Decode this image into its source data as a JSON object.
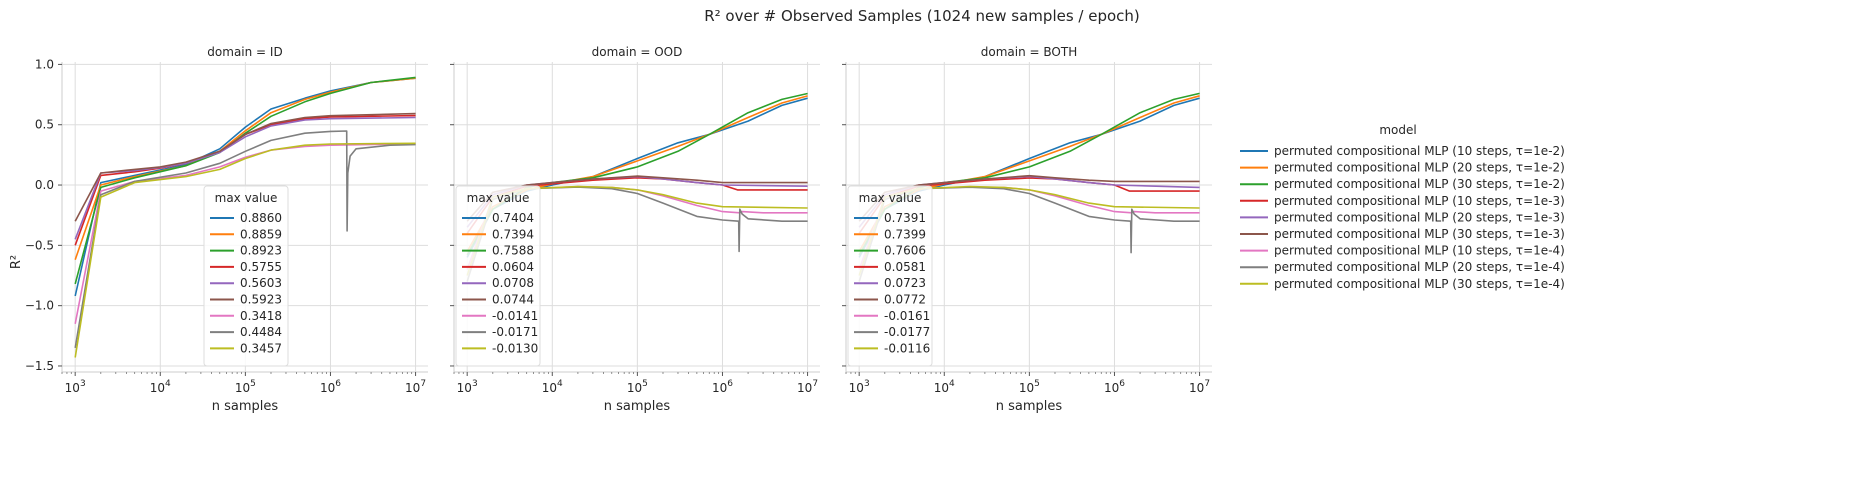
{
  "chart_data": {
    "type": "line",
    "title": "R² over # Observed Samples (1024 new samples / epoch)",
    "xlabel": "n samples",
    "ylabel": "R²",
    "xscale": "log",
    "xlim": [
      700,
      14000000
    ],
    "ylim": [
      -1.55,
      1.02
    ],
    "x_ticks": [
      {
        "value": 1000,
        "base": "10",
        "exp": "3"
      },
      {
        "value": 10000,
        "base": "10",
        "exp": "4"
      },
      {
        "value": 100000,
        "base": "10",
        "exp": "5"
      },
      {
        "value": 1000000,
        "base": "10",
        "exp": "6"
      },
      {
        "value": 10000000,
        "base": "10",
        "exp": "7"
      }
    ],
    "y_ticks": [
      {
        "value": 1.0,
        "label": "1.0"
      },
      {
        "value": 0.5,
        "label": "0.5"
      },
      {
        "value": 0.0,
        "label": "0.0"
      },
      {
        "value": -0.5,
        "label": "−0.5"
      },
      {
        "value": -1.0,
        "label": "−1.0"
      },
      {
        "value": -1.5,
        "label": "−1.5"
      }
    ],
    "grid": true,
    "colors": [
      "#1f77b4",
      "#ff7f0e",
      "#2ca02c",
      "#d62728",
      "#9467bd",
      "#8c564b",
      "#e377c2",
      "#7f7f7f",
      "#bcbd22"
    ],
    "legend": {
      "title": "model",
      "placement": "right",
      "entries": [
        "permuted compositional MLP (10 steps, τ=1e-2)",
        "permuted compositional MLP (20 steps, τ=1e-2)",
        "permuted compositional MLP (30 steps, τ=1e-2)",
        "permuted compositional MLP (10 steps, τ=1e-3)",
        "permuted compositional MLP (20 steps, τ=1e-3)",
        "permuted compositional MLP (30 steps, τ=1e-3)",
        "permuted compositional MLP (10 steps, τ=1e-4)",
        "permuted compositional MLP (20 steps, τ=1e-4)",
        "permuted compositional MLP (30 steps, τ=1e-4)"
      ]
    },
    "panels": [
      {
        "title": "domain = ID",
        "legend_title": "max value",
        "max_values": [
          "0.8860",
          "0.8859",
          "0.8923",
          "0.5755",
          "0.5603",
          "0.5923",
          "0.3418",
          "0.4484",
          "0.3457"
        ],
        "series": [
          {
            "x": [
              1000,
              2000,
              5000,
              20000,
              50000,
              100000,
              200000,
              500000,
              1000000,
              3000000,
              10000000
            ],
            "y": [
              -0.92,
              0.02,
              0.08,
              0.17,
              0.3,
              0.48,
              0.63,
              0.72,
              0.78,
              0.85,
              0.886
            ]
          },
          {
            "x": [
              1000,
              2000,
              5000,
              20000,
              50000,
              100000,
              200000,
              500000,
              1000000,
              3000000,
              10000000
            ],
            "y": [
              -0.62,
              0.0,
              0.07,
              0.16,
              0.28,
              0.45,
              0.6,
              0.71,
              0.77,
              0.85,
              0.886
            ]
          },
          {
            "x": [
              1000,
              2000,
              5000,
              20000,
              50000,
              100000,
              200000,
              500000,
              1000000,
              3000000,
              10000000
            ],
            "y": [
              -0.82,
              -0.02,
              0.06,
              0.16,
              0.27,
              0.43,
              0.57,
              0.69,
              0.76,
              0.85,
              0.892
            ]
          },
          {
            "x": [
              1000,
              2000,
              5000,
              10000,
              20000,
              50000,
              100000,
              200000,
              500000,
              1000000,
              10000000
            ],
            "y": [
              -0.5,
              0.08,
              0.11,
              0.14,
              0.18,
              0.28,
              0.42,
              0.5,
              0.55,
              0.565,
              0.576
            ]
          },
          {
            "x": [
              1000,
              2000,
              5000,
              10000,
              20000,
              50000,
              100000,
              200000,
              500000,
              1000000,
              10000000
            ],
            "y": [
              -0.45,
              0.1,
              0.12,
              0.145,
              0.18,
              0.27,
              0.4,
              0.49,
              0.54,
              0.55,
              0.56
            ]
          },
          {
            "x": [
              1000,
              2000,
              5000,
              10000,
              20000,
              50000,
              100000,
              200000,
              500000,
              1000000,
              10000000
            ],
            "y": [
              -0.3,
              0.1,
              0.13,
              0.15,
              0.19,
              0.28,
              0.42,
              0.51,
              0.56,
              0.575,
              0.592
            ]
          },
          {
            "x": [
              1000,
              2000,
              5000,
              20000,
              50000,
              100000,
              200000,
              500000,
              1000000,
              10000000
            ],
            "y": [
              -1.15,
              -0.05,
              0.03,
              0.08,
              0.15,
              0.23,
              0.29,
              0.32,
              0.33,
              0.342
            ]
          },
          {
            "x": [
              1000,
              2000,
              5000,
              20000,
              50000,
              100000,
              200000,
              500000,
              1000000,
              1550000,
              1570000,
              1600000,
              1700000,
              2000000,
              5000000,
              10000000
            ],
            "y": [
              -1.35,
              -0.08,
              0.03,
              0.1,
              0.18,
              0.28,
              0.37,
              0.43,
              0.445,
              0.448,
              -0.38,
              0.1,
              0.24,
              0.3,
              0.33,
              0.335
            ]
          },
          {
            "x": [
              1000,
              2000,
              5000,
              20000,
              50000,
              100000,
              200000,
              500000,
              1000000,
              10000000
            ],
            "y": [
              -1.43,
              -0.1,
              0.02,
              0.07,
              0.13,
              0.22,
              0.29,
              0.33,
              0.34,
              0.346
            ]
          }
        ]
      },
      {
        "title": "domain = OOD",
        "legend_title": "max value",
        "max_values": [
          "0.7404",
          "0.7394",
          "0.7588",
          "0.0604",
          "0.0708",
          "0.0744",
          "-0.0141",
          "-0.0171",
          "-0.0130"
        ],
        "series": [
          {
            "x": [
              1000,
              2000,
              5000,
              10000,
              30000,
              100000,
              300000,
              700000,
              2000000,
              5000000,
              10000000
            ],
            "y": [
              -0.6,
              -0.2,
              -0.05,
              0.0,
              0.07,
              0.22,
              0.35,
              0.42,
              0.53,
              0.66,
              0.72
            ]
          },
          {
            "x": [
              1000,
              2000,
              5000,
              10000,
              30000,
              100000,
              300000,
              700000,
              2000000,
              5000000,
              10000000
            ],
            "y": [
              -0.55,
              -0.18,
              -0.04,
              0.01,
              0.07,
              0.2,
              0.32,
              0.42,
              0.56,
              0.68,
              0.739
            ]
          },
          {
            "x": [
              1000,
              2000,
              5000,
              10000,
              30000,
              100000,
              300000,
              700000,
              2000000,
              5000000,
              10000000
            ],
            "y": [
              -0.58,
              -0.2,
              -0.02,
              0.02,
              0.06,
              0.15,
              0.28,
              0.42,
              0.6,
              0.71,
              0.759
            ]
          },
          {
            "x": [
              1000,
              2000,
              5000,
              10000,
              30000,
              100000,
              200000,
              500000,
              1000000,
              1500000,
              10000000
            ],
            "y": [
              -0.4,
              -0.1,
              -0.01,
              0.01,
              0.04,
              0.06,
              0.05,
              0.02,
              0.0,
              -0.04,
              -0.04
            ]
          },
          {
            "x": [
              1000,
              2000,
              5000,
              10000,
              30000,
              100000,
              200000,
              500000,
              1000000,
              10000000
            ],
            "y": [
              -0.35,
              -0.08,
              0.0,
              0.02,
              0.05,
              0.07,
              0.05,
              0.02,
              0.0,
              -0.01
            ]
          },
          {
            "x": [
              1000,
              2000,
              5000,
              10000,
              30000,
              100000,
              200000,
              500000,
              1000000,
              10000000
            ],
            "y": [
              -0.3,
              -0.06,
              0.0,
              0.02,
              0.05,
              0.074,
              0.06,
              0.04,
              0.02,
              0.02
            ]
          },
          {
            "x": [
              1000,
              2000,
              5000,
              20000,
              50000,
              100000,
              200000,
              500000,
              1000000,
              1600000,
              1700000,
              3000000,
              10000000
            ],
            "y": [
              -0.7,
              -0.1,
              -0.03,
              -0.014,
              -0.02,
              -0.04,
              -0.09,
              -0.17,
              -0.22,
              -0.23,
              -0.22,
              -0.23,
              -0.23
            ]
          },
          {
            "x": [
              1000,
              2000,
              5000,
              20000,
              50000,
              100000,
              200000,
              500000,
              1000000,
              1550000,
              1570000,
              1600000,
              1700000,
              2000000,
              5000000,
              10000000
            ],
            "y": [
              -0.8,
              -0.12,
              -0.03,
              -0.017,
              -0.03,
              -0.07,
              -0.15,
              -0.26,
              -0.29,
              -0.3,
              -0.55,
              -0.2,
              -0.24,
              -0.28,
              -0.3,
              -0.3
            ]
          },
          {
            "x": [
              1000,
              2000,
              5000,
              20000,
              50000,
              100000,
              200000,
              500000,
              1000000,
              10000000
            ],
            "y": [
              -0.75,
              -0.1,
              -0.03,
              -0.013,
              -0.02,
              -0.04,
              -0.08,
              -0.15,
              -0.18,
              -0.19
            ]
          }
        ]
      },
      {
        "title": "domain = BOTH",
        "legend_title": "max value",
        "max_values": [
          "0.7391",
          "0.7399",
          "0.7606",
          "0.0581",
          "0.0723",
          "0.0772",
          "-0.0161",
          "-0.0177",
          "-0.0116"
        ],
        "series": [
          {
            "x": [
              1000,
              2000,
              5000,
              10000,
              30000,
              100000,
              300000,
              700000,
              2000000,
              5000000,
              10000000
            ],
            "y": [
              -0.6,
              -0.2,
              -0.05,
              0.0,
              0.07,
              0.22,
              0.35,
              0.42,
              0.53,
              0.66,
              0.72
            ]
          },
          {
            "x": [
              1000,
              2000,
              5000,
              10000,
              30000,
              100000,
              300000,
              700000,
              2000000,
              5000000,
              10000000
            ],
            "y": [
              -0.55,
              -0.18,
              -0.04,
              0.01,
              0.07,
              0.2,
              0.32,
              0.42,
              0.56,
              0.68,
              0.74
            ]
          },
          {
            "x": [
              1000,
              2000,
              5000,
              10000,
              30000,
              100000,
              300000,
              700000,
              2000000,
              5000000,
              10000000
            ],
            "y": [
              -0.58,
              -0.2,
              -0.02,
              0.02,
              0.06,
              0.15,
              0.28,
              0.42,
              0.6,
              0.71,
              0.76
            ]
          },
          {
            "x": [
              1000,
              2000,
              5000,
              10000,
              30000,
              100000,
              200000,
              500000,
              1000000,
              1500000,
              10000000
            ],
            "y": [
              -0.4,
              -0.1,
              -0.01,
              0.01,
              0.04,
              0.058,
              0.05,
              0.02,
              0.0,
              -0.05,
              -0.05
            ]
          },
          {
            "x": [
              1000,
              2000,
              5000,
              10000,
              30000,
              100000,
              200000,
              500000,
              1000000,
              10000000
            ],
            "y": [
              -0.35,
              -0.08,
              0.0,
              0.02,
              0.05,
              0.072,
              0.05,
              0.02,
              0.0,
              -0.02
            ]
          },
          {
            "x": [
              1000,
              2000,
              5000,
              10000,
              30000,
              100000,
              200000,
              500000,
              1000000,
              10000000
            ],
            "y": [
              -0.3,
              -0.06,
              0.0,
              0.02,
              0.05,
              0.077,
              0.06,
              0.04,
              0.03,
              0.03
            ]
          },
          {
            "x": [
              1000,
              2000,
              5000,
              20000,
              50000,
              100000,
              200000,
              500000,
              1000000,
              1600000,
              1700000,
              3000000,
              10000000
            ],
            "y": [
              -0.7,
              -0.1,
              -0.03,
              -0.016,
              -0.02,
              -0.04,
              -0.09,
              -0.17,
              -0.22,
              -0.23,
              -0.22,
              -0.23,
              -0.23
            ]
          },
          {
            "x": [
              1000,
              2000,
              5000,
              20000,
              50000,
              100000,
              200000,
              500000,
              1000000,
              1550000,
              1570000,
              1600000,
              1700000,
              2000000,
              5000000,
              10000000
            ],
            "y": [
              -0.8,
              -0.12,
              -0.03,
              -0.018,
              -0.03,
              -0.07,
              -0.15,
              -0.26,
              -0.29,
              -0.3,
              -0.56,
              -0.2,
              -0.24,
              -0.28,
              -0.3,
              -0.3
            ]
          },
          {
            "x": [
              1000,
              2000,
              5000,
              20000,
              50000,
              100000,
              200000,
              500000,
              1000000,
              10000000
            ],
            "y": [
              -0.75,
              -0.1,
              -0.03,
              -0.012,
              -0.02,
              -0.04,
              -0.08,
              -0.15,
              -0.18,
              -0.19
            ]
          }
        ]
      }
    ]
  }
}
